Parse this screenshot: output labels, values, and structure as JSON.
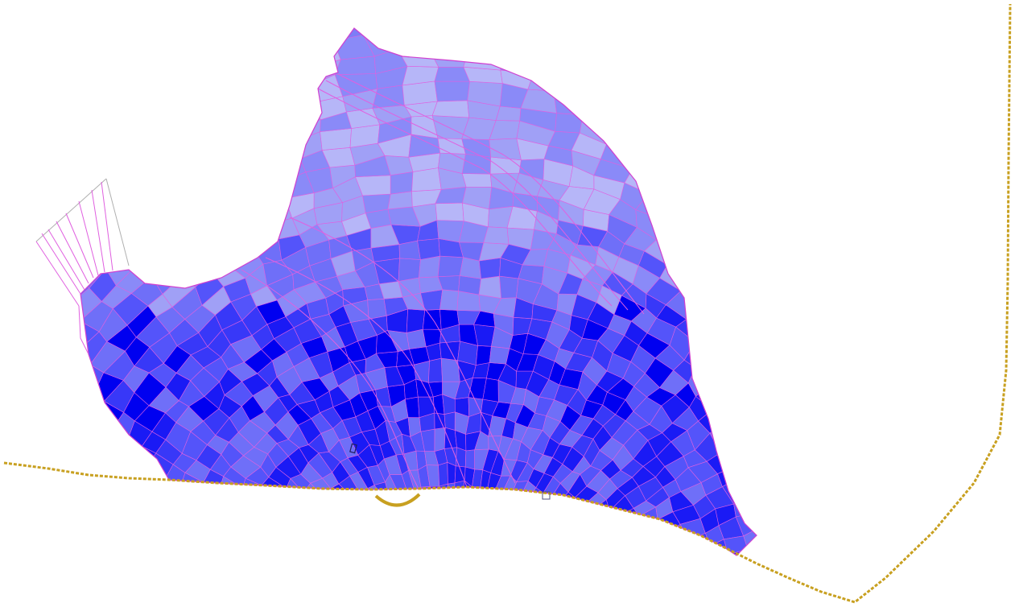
{
  "scene": {
    "background": "#ffffff",
    "mesh": {
      "fill_palette": [
        "#0000f0",
        "#1a1af5",
        "#3838f8",
        "#5454fa",
        "#6f6ff8",
        "#8a8af8",
        "#a0a0f6",
        "#b6b6f8"
      ],
      "cell_edge_color": "#e060e0",
      "outline_color": "#d040d0",
      "faint_edge_color": "#9a9acc"
    },
    "boundary_line": {
      "color": "#c8a020",
      "style": "dashed"
    },
    "arc_marker": {
      "color": "#c8a020"
    },
    "small_markers": [
      "rect-marker",
      "square-marker"
    ]
  }
}
